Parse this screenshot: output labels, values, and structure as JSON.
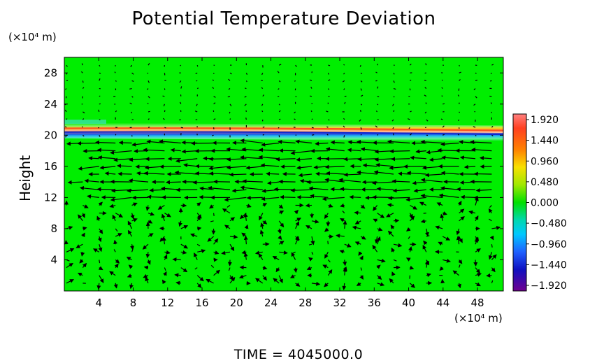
{
  "chart_data": {
    "type": "heatmap",
    "title": "Potential Temperature Deviation",
    "ylabel": "Height",
    "x_unit": "(×10⁴ m)",
    "y_unit": "(×10⁴ m)",
    "x_ticks": [
      4,
      8,
      12,
      16,
      20,
      24,
      28,
      32,
      36,
      40,
      44,
      48
    ],
    "y_ticks": [
      4,
      8,
      12,
      16,
      20,
      24,
      28
    ],
    "xlim": [
      0,
      51
    ],
    "ylim": [
      0,
      30
    ],
    "colorbar": {
      "ticks": [
        "1.920",
        "1.440",
        "0.960",
        "0.480",
        "0.000",
        "−0.480",
        "−0.960",
        "−1.440",
        "−1.920"
      ],
      "range": [
        -1.92,
        1.92
      ]
    },
    "background_value": 0.0,
    "background_color": "#00ee00",
    "bands": [
      {
        "name": "tropopause-warm",
        "y": 20.8,
        "value": 1.4,
        "color": "#ff6a3a"
      },
      {
        "name": "tropopause-cold",
        "y": 20.3,
        "value": -1.5,
        "color": "#1030d8"
      },
      {
        "name": "tropopause-yellow",
        "y": 21.2,
        "value": 0.8,
        "color": "#f0e020"
      },
      {
        "name": "tropopause-cyan",
        "y": 19.9,
        "value": -0.6,
        "color": "#20c8e8"
      }
    ],
    "wind_vectors": "westward jets between heights 12 and 20; weak vectors elsewhere"
  },
  "footer": {
    "time_label": "TIME  =  4045000.0"
  }
}
